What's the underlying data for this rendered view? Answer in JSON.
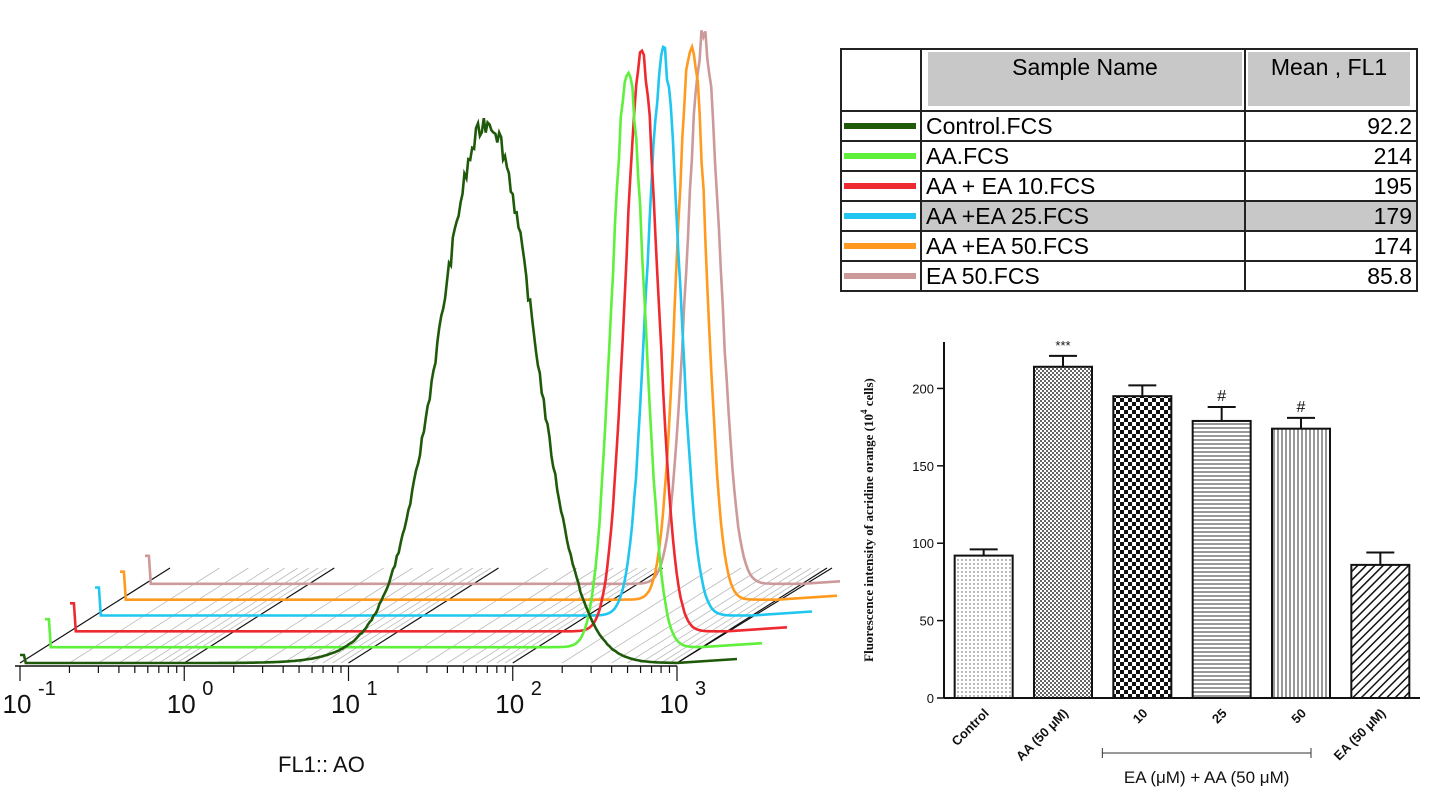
{
  "flow": {
    "xlabel": "FL1:: AO",
    "ticks": [
      {
        "base": "10",
        "exp": "-1"
      },
      {
        "base": "10",
        "exp": "0"
      },
      {
        "base": "10",
        "exp": "1"
      },
      {
        "base": "10",
        "exp": "2"
      },
      {
        "base": "10",
        "exp": "3"
      }
    ],
    "series": [
      {
        "name": "Control.FCS",
        "color": "#1f5a0a",
        "peak_log": 1.85
      },
      {
        "name": "AA.FCS",
        "color": "#5ef03a",
        "peak_log": 2.55
      },
      {
        "name": "AA + EA 10.FCS",
        "color": "#ee2a30",
        "peak_log": 2.48
      },
      {
        "name": "AA +EA 25.FCS",
        "color": "#1ec6f0",
        "peak_log": 2.46
      },
      {
        "name": "AA +EA 50.FCS",
        "color": "#ff9a1e",
        "peak_log": 2.48
      },
      {
        "name": "EA 50.FCS",
        "color": "#cc9a9a",
        "peak_log": 2.4
      }
    ]
  },
  "table": {
    "header_name": "Sample Name",
    "header_value": "Mean , FL1",
    "rows": [
      {
        "name": "Control.FCS",
        "value": "92.2",
        "color": "#1f5a0a",
        "highlight": false
      },
      {
        "name": "AA.FCS",
        "value": "214",
        "color": "#5ef03a",
        "highlight": false
      },
      {
        "name": "AA + EA 10.FCS",
        "value": "195",
        "color": "#ee2a30",
        "highlight": false
      },
      {
        "name": "AA +EA 25.FCS",
        "value": "179",
        "color": "#1ec6f0",
        "highlight": true
      },
      {
        "name": "AA +EA 50.FCS",
        "value": "174",
        "color": "#ff9a1e",
        "highlight": false
      },
      {
        "name": "EA 50.FCS",
        "value": "85.8",
        "color": "#cc9a9a",
        "highlight": false
      }
    ]
  },
  "chart_data": [
    {
      "type": "line",
      "xlabel": "FL1:: AO",
      "x_scale": "log",
      "xlim": [
        0.1,
        1000
      ],
      "series": [
        {
          "name": "Control.FCS",
          "peak_x": 70
        },
        {
          "name": "AA.FCS",
          "peak_x": 360
        },
        {
          "name": "AA + EA 10.FCS",
          "peak_x": 300
        },
        {
          "name": "AA +EA 25.FCS",
          "peak_x": 290
        },
        {
          "name": "AA +EA 50.FCS",
          "peak_x": 300
        },
        {
          "name": "EA 50.FCS",
          "peak_x": 250
        }
      ]
    },
    {
      "type": "bar",
      "ylabel_main": "Fluorescence intensity of acridine orange  (10",
      "ylabel_sup": "4",
      "ylabel_end": " cells)",
      "ylim": [
        0,
        200
      ],
      "yticks": [
        "0",
        "50",
        "100",
        "150",
        "200"
      ],
      "categories": [
        "Control",
        "AA (50 μM)",
        "10",
        "25",
        "50",
        "EA (50 μM)"
      ],
      "values": [
        92,
        214,
        195,
        179,
        174,
        86
      ],
      "errors": [
        4,
        7,
        7,
        9,
        7,
        8
      ],
      "annotations": [
        "",
        "***",
        "",
        "#",
        "#",
        ""
      ],
      "group_label": "EA (μM) + AA (50 μM)"
    }
  ]
}
